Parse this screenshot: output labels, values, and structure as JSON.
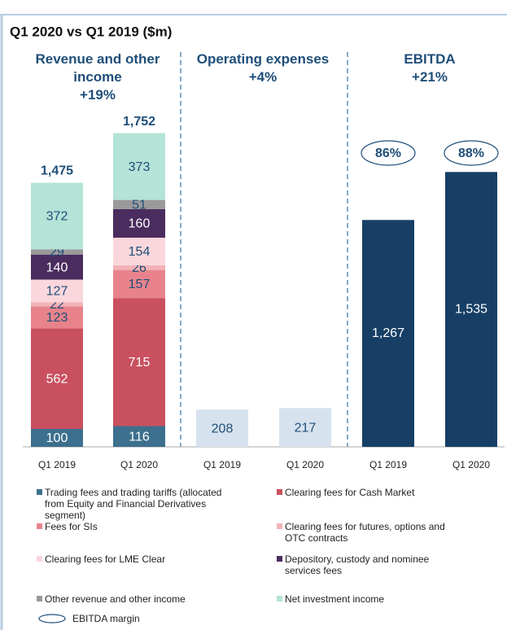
{
  "title": "Q1 2020 vs Q1 2019 ($m)",
  "chart_data": [
    {
      "type": "bar",
      "stacked": true,
      "title": "Revenue and other income",
      "subtitle": "+19%",
      "categories": [
        "Q1 2019",
        "Q1 2020"
      ],
      "ylim": [
        0,
        1800
      ],
      "totals": [
        1475,
        1752
      ],
      "total_labels": [
        "1,475",
        "1,752"
      ],
      "series": [
        {
          "name": "Trading fees and trading tariffs (allocated from Equity and Financial Derivatives segment)",
          "color": "#3d6f8e",
          "values": [
            100,
            116
          ]
        },
        {
          "name": "Clearing fees for Cash Market",
          "color": "#c9505f",
          "values": [
            562,
            715
          ]
        },
        {
          "name": "Fees for SIs",
          "color": "#e8838c",
          "values": [
            123,
            157
          ]
        },
        {
          "name": "Clearing fees for futures, options and OTC contracts",
          "color": "#f2b3b8",
          "values": [
            22,
            26
          ]
        },
        {
          "name": "Clearing fees for LME Clear",
          "color": "#fad7dc",
          "values": [
            127,
            154
          ]
        },
        {
          "name": "Depository, custody and nominee services fees",
          "color": "#4b2c5e",
          "values": [
            140,
            160
          ]
        },
        {
          "name": "Other revenue and other income",
          "color": "#9a9a9a",
          "values": [
            29,
            51
          ]
        },
        {
          "name": "Net investment income",
          "color": "#b4e3d7",
          "values": [
            372,
            373
          ]
        }
      ]
    },
    {
      "type": "bar",
      "title": "Operating expenses",
      "subtitle": "+4%",
      "categories": [
        "Q1 2019",
        "Q1 2020"
      ],
      "ylim": [
        0,
        1800
      ],
      "values": [
        208,
        217
      ],
      "color": "#d6e3ee"
    },
    {
      "type": "bar",
      "title": "EBITDA",
      "subtitle": "+21%",
      "categories": [
        "Q1 2019",
        "Q1 2020"
      ],
      "ylim": [
        0,
        1800
      ],
      "values": [
        1267,
        1535
      ],
      "value_labels": [
        "1,267",
        "1,535"
      ],
      "color": "#173f66",
      "margins": [
        86,
        88
      ],
      "margin_labels": [
        "86%",
        "88%"
      ],
      "margin_legend": "EBITDA margin"
    }
  ]
}
